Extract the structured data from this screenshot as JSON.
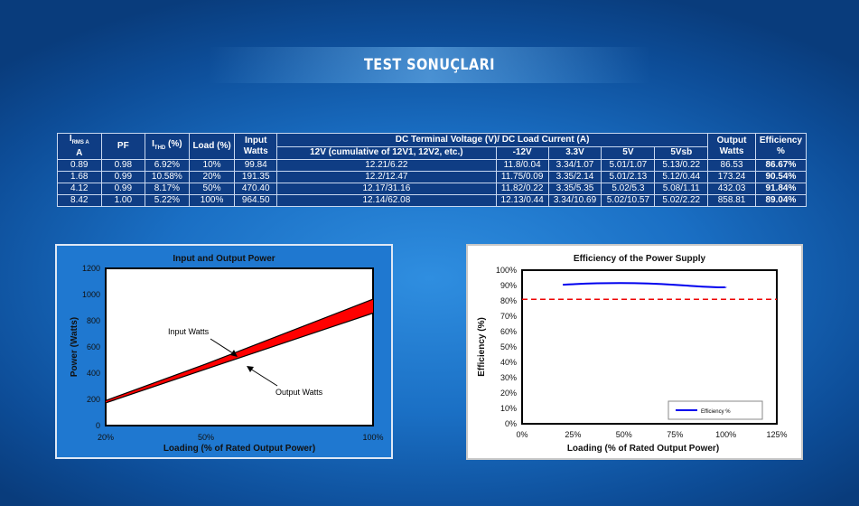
{
  "page": {
    "title": "TEST SONUÇLARI"
  },
  "table": {
    "headers": {
      "irms_main": "I",
      "irms_sub": "RMS A",
      "irms_unit": "A",
      "pf": "PF",
      "ithd_main": "I",
      "ithd_sub": "THD",
      "ithd_unit": " (%)",
      "load": "Load (%)",
      "input_watts": "Input Watts",
      "dc_group": "DC Terminal Voltage (V)/ DC Load Current (A)",
      "v12": "12V (cumulative of 12V1, 12V2, etc.)",
      "vneg12": "-12V",
      "v33": "3.3V",
      "v5": "5V",
      "v5vsb": "5Vsb",
      "output_watts": "Output Watts",
      "efficiency": "Efficiency %"
    },
    "rows": [
      {
        "irms": "0.89",
        "pf": "0.98",
        "ithd": "6.92%",
        "load": "10%",
        "input": "99.84",
        "v12": "12.21/6.22",
        "vneg12": "11.8/0.04",
        "v33": "3.34/1.07",
        "v5": "5.01/1.07",
        "v5vsb": "5.13/0.22",
        "output": "86.53",
        "eff": "86.67%"
      },
      {
        "irms": "1.68",
        "pf": "0.99",
        "ithd": "10.58%",
        "load": "20%",
        "input": "191.35",
        "v12": "12.2/12.47",
        "vneg12": "11.75/0.09",
        "v33": "3.35/2.14",
        "v5": "5.01/2.13",
        "v5vsb": "5.12/0.44",
        "output": "173.24",
        "eff": "90.54%"
      },
      {
        "irms": "4.12",
        "pf": "0.99",
        "ithd": "8.17%",
        "load": "50%",
        "input": "470.40",
        "v12": "12.17/31.16",
        "vneg12": "11.82/0.22",
        "v33": "3.35/5.35",
        "v5": "5.02/5.3",
        "v5vsb": "5.08/1.11",
        "output": "432.03",
        "eff": "91.84%"
      },
      {
        "irms": "8.42",
        "pf": "1.00",
        "ithd": "5.22%",
        "load": "100%",
        "input": "964.50",
        "v12": "12.14/62.08",
        "vneg12": "12.13/0.44",
        "v33": "3.34/10.69",
        "v5": "5.02/10.57",
        "v5vsb": "5.02/2.22",
        "output": "858.81",
        "eff": "89.04%"
      }
    ]
  },
  "chart_data": [
    {
      "type": "area",
      "title": "Input and Output Power",
      "xlabel": "Loading (% of Rated Output Power)",
      "ylabel": "Power (Watts)",
      "x_ticks": [
        "20%",
        "50%",
        "100%"
      ],
      "y_ticks": [
        "0",
        "200",
        "400",
        "600",
        "800",
        "1000",
        "1200"
      ],
      "ylim": [
        0,
        1200
      ],
      "x": [
        20,
        50,
        100
      ],
      "series": [
        {
          "name": "Input Watts",
          "values": [
            191.35,
            470.4,
            964.5
          ]
        },
        {
          "name": "Output Watts",
          "values": [
            173.24,
            432.03,
            858.81
          ]
        }
      ],
      "annotations": [
        "Input Watts",
        "Output Watts"
      ],
      "fill_color": "#ff0000"
    },
    {
      "type": "line",
      "title": "Efficiency of the Power Supply",
      "xlabel": "Loading (% of Rated Output Power)",
      "ylabel": "Efficiency (%)",
      "x_ticks": [
        "0%",
        "25%",
        "50%",
        "75%",
        "100%",
        "125%"
      ],
      "y_ticks": [
        "0%",
        "10%",
        "20%",
        "30%",
        "40%",
        "50%",
        "60%",
        "70%",
        "80%",
        "90%",
        "100%"
      ],
      "xlim": [
        0,
        125
      ],
      "ylim": [
        0,
        100
      ],
      "series": [
        {
          "name": "Efficiency %",
          "x": [
            20,
            50,
            100
          ],
          "values": [
            90.54,
            91.84,
            89.04
          ],
          "color": "#0000ee"
        }
      ],
      "reference_line": {
        "y": 81,
        "color": "#ee0000"
      },
      "legend": "bottom-right"
    }
  ]
}
